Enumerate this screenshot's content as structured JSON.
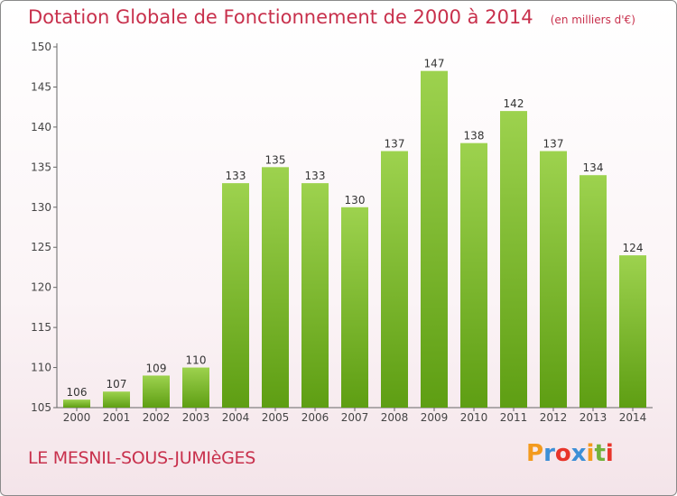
{
  "chart_title": "Dotation Globale de Fonctionnement de 2000 à 2014",
  "chart_unit": "(en milliers d'€)",
  "commune": "LE MESNIL-SOUS-JUMIèGES",
  "logo": {
    "text": "Proxiti",
    "letters": [
      "P",
      "r",
      "o",
      "x",
      "i",
      "t",
      "i"
    ],
    "colors": [
      "#f39a1e",
      "#3d8fd6",
      "#e8352a",
      "#3d8fd6",
      "#f39a1e",
      "#72b23b",
      "#e8352a"
    ]
  },
  "colors": {
    "title": "#c8304c",
    "bar_top": "#9dd24e",
    "bar_bottom": "#5e9e13",
    "axis": "#666666"
  },
  "chart_data": {
    "type": "bar",
    "title": "Dotation Globale de Fonctionnement de 2000 à 2014",
    "xlabel": "",
    "ylabel": "",
    "categories": [
      "2000",
      "2001",
      "2002",
      "2003",
      "2004",
      "2005",
      "2006",
      "2007",
      "2008",
      "2009",
      "2010",
      "2011",
      "2012",
      "2013",
      "2014"
    ],
    "values": [
      106,
      107,
      109,
      110,
      133,
      135,
      133,
      130,
      137,
      147,
      138,
      142,
      137,
      134,
      124
    ],
    "ylim": [
      105,
      150
    ],
    "yticks": [
      105,
      110,
      115,
      120,
      125,
      130,
      135,
      140,
      145,
      150
    ],
    "grid": false,
    "legend": "none"
  }
}
